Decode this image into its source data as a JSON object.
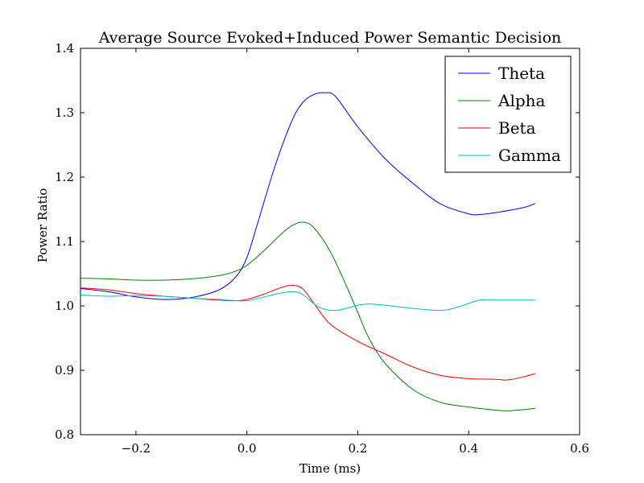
{
  "chart_data": {
    "type": "line",
    "title": "Average Source Evoked+Induced Power Semantic Decision",
    "xlabel": "Time (ms)",
    "ylabel": "Power Ratio",
    "xlim": [
      -0.3,
      0.6
    ],
    "ylim": [
      0.8,
      1.4
    ],
    "x_ticks": [
      -0.2,
      0.0,
      0.2,
      0.4,
      0.6
    ],
    "x_tick_labels": [
      "−0.2",
      "0.0",
      "0.2",
      "0.4",
      "0.6"
    ],
    "y_ticks": [
      0.8,
      0.9,
      1.0,
      1.1,
      1.2,
      1.3,
      1.4
    ],
    "y_tick_labels": [
      "0.8",
      "0.9",
      "1.0",
      "1.1",
      "1.2",
      "1.3",
      "1.4"
    ],
    "grid": false,
    "legend_position": "top-right",
    "series": [
      {
        "name": "Theta",
        "color": "#0000ff",
        "x": [
          -0.3,
          -0.25,
          -0.2,
          -0.15,
          -0.1,
          -0.05,
          -0.02,
          0.0,
          0.02,
          0.05,
          0.08,
          0.1,
          0.12,
          0.14,
          0.16,
          0.2,
          0.25,
          0.3,
          0.35,
          0.4,
          0.42,
          0.45,
          0.5,
          0.52
        ],
        "values": [
          1.027,
          1.022,
          1.014,
          1.01,
          1.013,
          1.025,
          1.045,
          1.075,
          1.13,
          1.215,
          1.285,
          1.315,
          1.328,
          1.331,
          1.325,
          1.278,
          1.228,
          1.19,
          1.158,
          1.143,
          1.142,
          1.145,
          1.153,
          1.159
        ]
      },
      {
        "name": "Alpha",
        "color": "#008000",
        "x": [
          -0.3,
          -0.25,
          -0.2,
          -0.15,
          -0.1,
          -0.05,
          -0.02,
          0.0,
          0.03,
          0.06,
          0.08,
          0.1,
          0.12,
          0.15,
          0.18,
          0.2,
          0.22,
          0.25,
          0.3,
          0.35,
          0.4,
          0.45,
          0.47,
          0.5,
          0.52
        ],
        "values": [
          1.043,
          1.042,
          1.04,
          1.04,
          1.042,
          1.047,
          1.054,
          1.063,
          1.085,
          1.11,
          1.124,
          1.13,
          1.122,
          1.085,
          1.03,
          0.99,
          0.95,
          0.91,
          0.87,
          0.85,
          0.843,
          0.838,
          0.837,
          0.839,
          0.841
        ]
      },
      {
        "name": "Beta",
        "color": "#ff0000",
        "x": [
          -0.3,
          -0.25,
          -0.2,
          -0.15,
          -0.1,
          -0.05,
          -0.02,
          0.0,
          0.03,
          0.06,
          0.08,
          0.1,
          0.12,
          0.15,
          0.2,
          0.25,
          0.3,
          0.35,
          0.4,
          0.45,
          0.47,
          0.5,
          0.52
        ],
        "values": [
          1.028,
          1.025,
          1.019,
          1.015,
          1.012,
          1.009,
          1.008,
          1.01,
          1.018,
          1.028,
          1.032,
          1.027,
          1.005,
          0.972,
          0.945,
          0.925,
          0.905,
          0.892,
          0.887,
          0.886,
          0.885,
          0.89,
          0.895
        ]
      },
      {
        "name": "Gamma",
        "color": "#00bfbf",
        "x": [
          -0.3,
          -0.25,
          -0.2,
          -0.15,
          -0.1,
          -0.05,
          0.0,
          0.05,
          0.08,
          0.1,
          0.13,
          0.16,
          0.2,
          0.22,
          0.25,
          0.3,
          0.35,
          0.38,
          0.42,
          0.45,
          0.5,
          0.52
        ],
        "values": [
          1.017,
          1.015,
          1.016,
          1.015,
          1.012,
          1.01,
          1.008,
          1.018,
          1.022,
          1.018,
          0.998,
          0.993,
          1.001,
          1.003,
          1.001,
          0.996,
          0.993,
          0.998,
          1.009,
          1.009,
          1.009,
          1.009
        ]
      }
    ]
  }
}
